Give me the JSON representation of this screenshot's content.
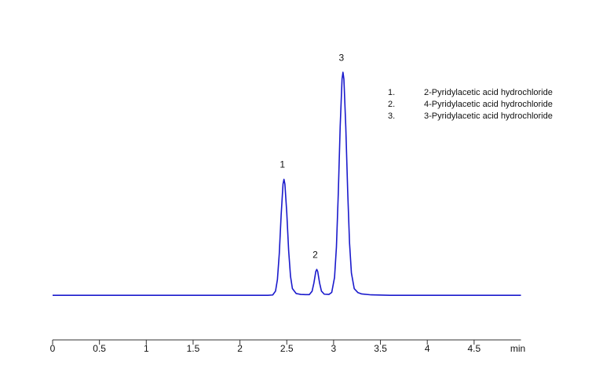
{
  "chart_data": {
    "type": "line",
    "x": [
      0,
      2.0,
      2.3,
      2.35,
      2.38,
      2.4,
      2.42,
      2.44,
      2.46,
      2.47,
      2.48,
      2.5,
      2.52,
      2.54,
      2.56,
      2.6,
      2.65,
      2.7,
      2.74,
      2.77,
      2.79,
      2.81,
      2.82,
      2.83,
      2.85,
      2.87,
      2.9,
      2.95,
      2.98,
      3.01,
      3.03,
      3.05,
      3.07,
      3.09,
      3.1,
      3.11,
      3.13,
      3.15,
      3.17,
      3.19,
      3.22,
      3.26,
      3.3,
      3.4,
      3.6,
      5.0
    ],
    "series": [
      {
        "color": "#1a1acc",
        "values": [
          0,
          0,
          0,
          0.15,
          1.9,
          7.0,
          18.7,
          36.0,
          49.9,
          52,
          49.9,
          37,
          20,
          8.5,
          3.0,
          0.8,
          0.4,
          0.3,
          0.3,
          1.8,
          5.6,
          10.7,
          11.6,
          10.7,
          5.6,
          1.9,
          0.5,
          0.4,
          1.3,
          8.0,
          21.6,
          45.8,
          75.5,
          96.9,
          100,
          96.9,
          75.5,
          47,
          23.5,
          10,
          3,
          1.2,
          0.6,
          0.2,
          0,
          0
        ]
      }
    ],
    "xlim": [
      0,
      5
    ],
    "xticks": [
      0,
      0.5,
      1,
      1.5,
      2,
      2.5,
      3,
      3.5,
      4,
      4.5
    ],
    "x_label": "min",
    "ylim": [
      -20,
      112
    ],
    "grid": false,
    "peak_labels": [
      "1",
      "2",
      "3"
    ],
    "legend": [
      {
        "number": "1.",
        "name": "2-Pyridylacetic acid hydrochloride"
      },
      {
        "number": "2.",
        "name": "4-Pyridylacetic acid hydrochloride"
      },
      {
        "number": "3.",
        "name": "3-Pyridylacetic acid hydrochloride"
      }
    ]
  }
}
